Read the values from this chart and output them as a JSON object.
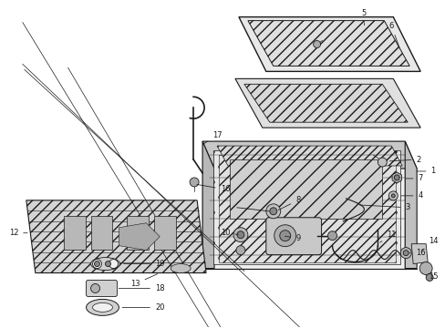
{
  "bg_color": "#ffffff",
  "line_color": "#1a1a1a",
  "glass_fill": "#e8e8e8",
  "frame_fill": "#d8d8d8",
  "frame_top_fill": "#cccccc",
  "frame_side_fill": "#b8b8b8",
  "shade_fill": "#d0d0d0",
  "component_fill": "#c0c0c0",
  "white_fill": "#f5f5f5"
}
